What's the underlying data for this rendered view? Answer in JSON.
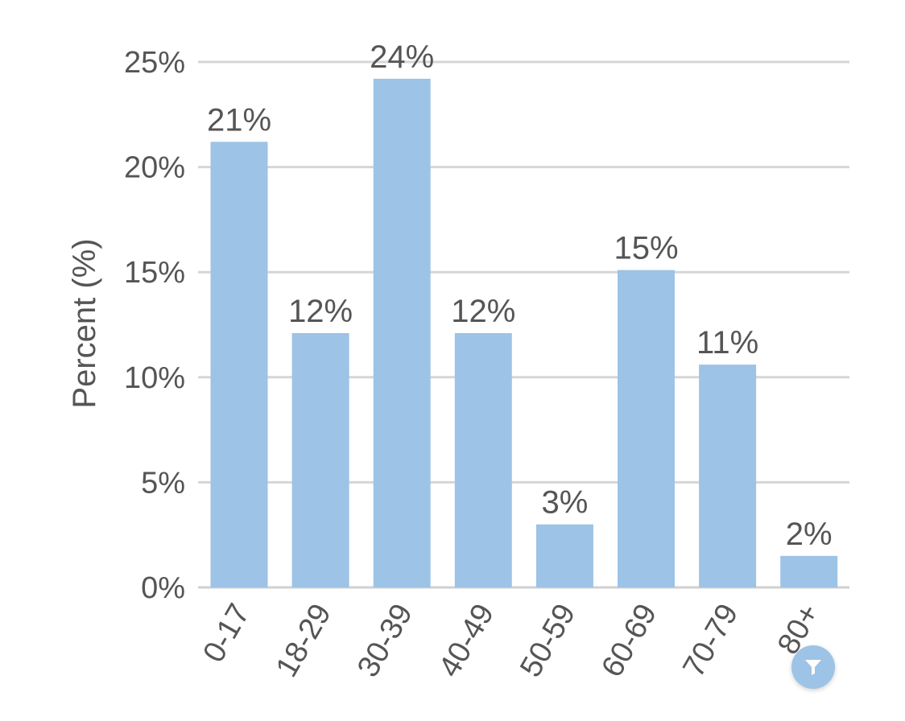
{
  "colors": {
    "bar": "#9dc3e6",
    "text": "#555555",
    "grid": "#d6d6d6",
    "filter_button": "#9dc3e6"
  },
  "filter_button": {
    "icon": "filter-icon"
  },
  "chart_data": {
    "type": "bar",
    "ylabel": "Percent (%)",
    "ylim": [
      0,
      25
    ],
    "yticks": [
      {
        "value": 0,
        "label": "0%"
      },
      {
        "value": 5,
        "label": "5%"
      },
      {
        "value": 10,
        "label": "10%"
      },
      {
        "value": 15,
        "label": "15%"
      },
      {
        "value": 20,
        "label": "20%"
      },
      {
        "value": 25,
        "label": "25%"
      }
    ],
    "grid": true,
    "categories": [
      "0-17",
      "18-29",
      "30-39",
      "40-49",
      "50-59",
      "60-69",
      "70-79",
      "80+"
    ],
    "values": [
      21.2,
      12.1,
      24.2,
      12.1,
      3.0,
      15.1,
      10.6,
      1.5
    ],
    "data_labels": [
      "21%",
      "12%",
      "24%",
      "12%",
      "3%",
      "15%",
      "11%",
      "2%"
    ]
  }
}
